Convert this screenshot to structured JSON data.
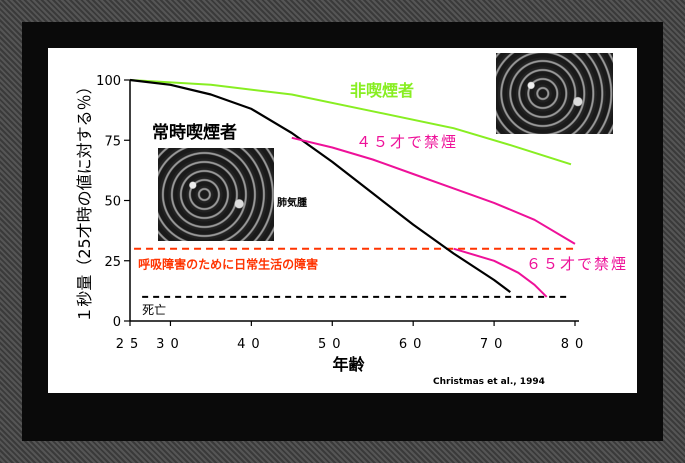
{
  "chart_data": {
    "type": "line",
    "ylabel": "１秒量（25才時の値に対する％）",
    "xlabel": "年齢",
    "x_ticks": [
      "25",
      "30",
      "40",
      "50",
      "60",
      "70",
      "80"
    ],
    "y_ticks": [
      "0",
      "25",
      "50",
      "75",
      "100"
    ],
    "xlim": [
      25,
      80
    ],
    "ylim": [
      0,
      100
    ],
    "series": [
      {
        "name": "非喫煙者",
        "color": "#88ee22",
        "points": [
          [
            25,
            100
          ],
          [
            35,
            98
          ],
          [
            45,
            94
          ],
          [
            55,
            87
          ],
          [
            65,
            80
          ],
          [
            72,
            73
          ],
          [
            79.5,
            65
          ]
        ]
      },
      {
        "name": "常時喫煙者",
        "color": "#000000",
        "points": [
          [
            25,
            100
          ],
          [
            30,
            98
          ],
          [
            35,
            94
          ],
          [
            40,
            88
          ],
          [
            45,
            78
          ],
          [
            50,
            66
          ],
          [
            55,
            53
          ],
          [
            60,
            40
          ],
          [
            65,
            28
          ],
          [
            70,
            17
          ],
          [
            72,
            12
          ]
        ]
      },
      {
        "name": "４５才で禁煙",
        "color": "#ee1199",
        "points": [
          [
            45,
            76
          ],
          [
            50,
            72
          ],
          [
            55,
            67
          ],
          [
            60,
            61
          ],
          [
            65,
            55
          ],
          [
            70,
            49
          ],
          [
            75,
            42
          ],
          [
            80,
            32
          ]
        ]
      },
      {
        "name": "６５才で禁煙",
        "color": "#ee1199",
        "points": [
          [
            65,
            30
          ],
          [
            70,
            25
          ],
          [
            73,
            20
          ],
          [
            75,
            15
          ],
          [
            76.5,
            10
          ]
        ]
      }
    ],
    "thresholds": [
      {
        "label": "呼吸障害のために日常生活の障害",
        "y": 30,
        "color": "#ff3300"
      },
      {
        "label": "死亡",
        "y": 10,
        "color": "#000000"
      }
    ],
    "annotations": {
      "emphysema": "肺気腫",
      "source": "Christmas et al., 1994"
    }
  }
}
